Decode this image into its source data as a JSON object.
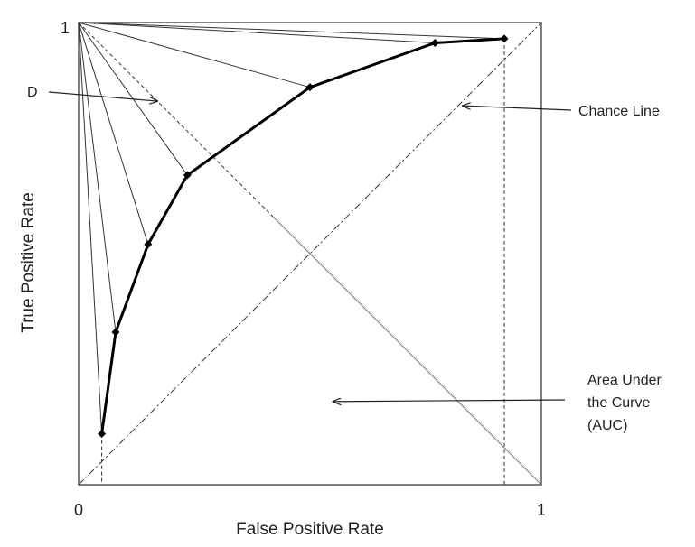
{
  "chart_data": {
    "type": "line",
    "xlabel": "False Positive Rate",
    "ylabel": "True Positive Rate",
    "xlim": [
      0,
      1
    ],
    "ylim": [
      0,
      1
    ],
    "tick_labels": {
      "origin": "0",
      "x_max": "1",
      "y_max": "1"
    },
    "grid": false,
    "series": [
      {
        "name": "",
        "points": [
          {
            "x": 0.05,
            "y": 0.11
          },
          {
            "x": 0.08,
            "y": 0.33
          },
          {
            "x": 0.15,
            "y": 0.52
          },
          {
            "x": 0.235,
            "y": 0.67
          },
          {
            "x": 0.5,
            "y": 0.86
          },
          {
            "x": 0.77,
            "y": 0.956
          },
          {
            "x": 0.92,
            "y": 0.965
          }
        ]
      }
    ],
    "reference_lines": [
      {
        "kind": "chance",
        "style": "dash-dot",
        "from": {
          "x": 0,
          "y": 0
        },
        "to": {
          "x": 1,
          "y": 1
        }
      },
      {
        "kind": "diagonal",
        "style": "dashed-then-solid",
        "from": {
          "x": 0,
          "y": 1
        },
        "to": {
          "x": 1,
          "y": 0
        }
      }
    ],
    "annotations": [
      {
        "id": "d",
        "text": "D",
        "arrow_to": {
          "x": 0.17,
          "y": 0.83
        }
      },
      {
        "id": "chance",
        "text": "Chance Line",
        "arrow_to": {
          "x": 0.83,
          "y": 0.82
        }
      },
      {
        "id": "auc",
        "text_lines": [
          "Area Under",
          "the Curve",
          "(AUC)"
        ],
        "arrow_to": {
          "x": 0.55,
          "y": 0.18
        }
      }
    ]
  }
}
